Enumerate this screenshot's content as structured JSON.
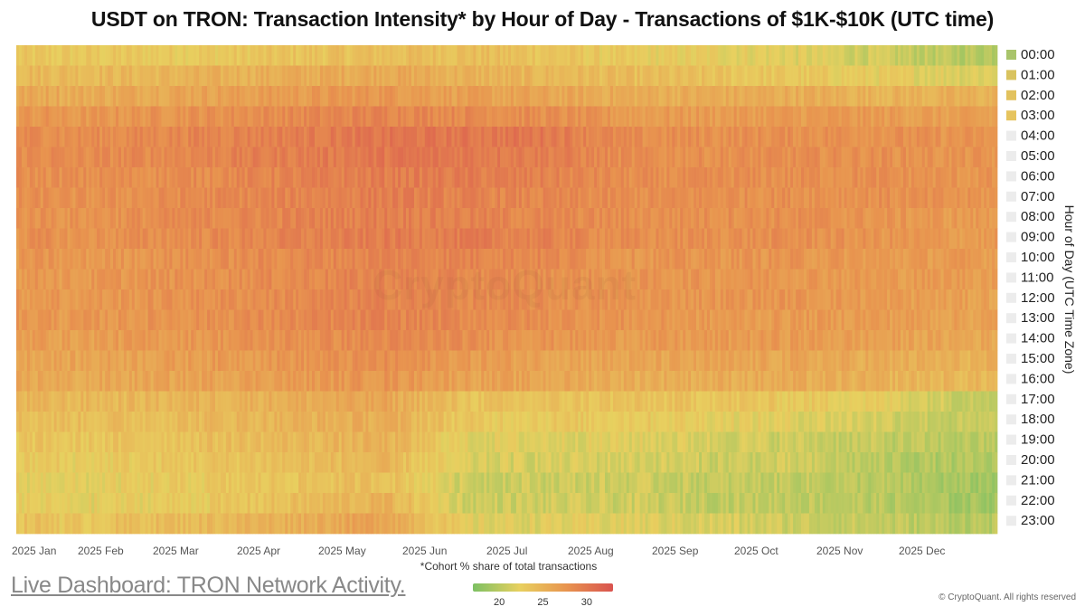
{
  "chart_data": {
    "type": "heatmap",
    "title": "USDT on TRON: Transaction Intensity* by Hour of Day - Transactions of $1K-$10K (UTC time)",
    "x_axis_ticks": [
      "2025 Jan",
      "2025 Feb",
      "2025 Mar",
      "2025 Apr",
      "2025 May",
      "2025 Jun",
      "2025 Jul",
      "2025 Aug",
      "2025 Sep",
      "2025 Oct",
      "2025 Nov",
      "2025 Dec"
    ],
    "y_axis_label": "Hour of Day (UTC Time Zone)",
    "hours": [
      "00:00",
      "01:00",
      "02:00",
      "03:00",
      "04:00",
      "05:00",
      "06:00",
      "07:00",
      "08:00",
      "09:00",
      "10:00",
      "11:00",
      "12:00",
      "13:00",
      "14:00",
      "15:00",
      "16:00",
      "17:00",
      "18:00",
      "19:00",
      "20:00",
      "21:00",
      "22:00",
      "23:00"
    ],
    "hour_legend_colors": [
      "#a9c46b",
      "#d9c35f",
      "#e2c25e",
      "#e6c45e",
      "#ececec",
      "#ececec",
      "#ececec",
      "#ececec",
      "#ececec",
      "#ececec",
      "#ececec",
      "#ececec",
      "#ececec",
      "#ececec",
      "#ececec",
      "#ececec",
      "#ececec",
      "#ececec",
      "#ececec",
      "#ececec",
      "#ececec",
      "#ececec",
      "#ececec",
      "#ececec"
    ],
    "monthly_values": [
      [
        23,
        23,
        23,
        23.5,
        24,
        24,
        23.5,
        22.5,
        22.5,
        22,
        21,
        20
      ],
      [
        24.5,
        24.5,
        25,
        25.5,
        26,
        25,
        24.5,
        24,
        23.5,
        23,
        22.5,
        22
      ],
      [
        25.5,
        26,
        26.5,
        27,
        27.5,
        26.5,
        26,
        25.5,
        25.5,
        25.5,
        25,
        25
      ],
      [
        27,
        27.5,
        28,
        28.5,
        29,
        28.5,
        28,
        27,
        27,
        27,
        27,
        26.5
      ],
      [
        28,
        28.5,
        29,
        29.5,
        30,
        30,
        30,
        28,
        28,
        28,
        28,
        27.5
      ],
      [
        28,
        28.5,
        29,
        29.5,
        30,
        30,
        29.5,
        28,
        28,
        28,
        28,
        27.5
      ],
      [
        28,
        28,
        28.5,
        29,
        29.5,
        29.5,
        29,
        28,
        28,
        28,
        28,
        27.5
      ],
      [
        27.5,
        28,
        28.5,
        29,
        29.5,
        29,
        28.5,
        28,
        28,
        28,
        28,
        27.5
      ],
      [
        27.5,
        28,
        28.5,
        29,
        29.5,
        29,
        28.5,
        28,
        28,
        28,
        27.5,
        27
      ],
      [
        27.5,
        28,
        28.5,
        29,
        29.5,
        29.5,
        29,
        28,
        28,
        28,
        27.5,
        27
      ],
      [
        27,
        27.5,
        28,
        28.5,
        29,
        29,
        28.5,
        27.5,
        27.5,
        27.5,
        27,
        27
      ],
      [
        27,
        27.5,
        28,
        28.5,
        29,
        28.5,
        28,
        27.5,
        27.5,
        27.5,
        27,
        27
      ],
      [
        27,
        27.5,
        28,
        28.5,
        29,
        28.5,
        28,
        27.5,
        27.5,
        27.5,
        27,
        26.5
      ],
      [
        27,
        27.5,
        28,
        28.5,
        29,
        28.5,
        28,
        27.5,
        27,
        27,
        27,
        26.5
      ],
      [
        26.5,
        27,
        27.5,
        28,
        28.5,
        28,
        27.5,
        27,
        27,
        27,
        26.5,
        26
      ],
      [
        26,
        26.5,
        27,
        27.5,
        28,
        27,
        26.5,
        26,
        26,
        26,
        25.5,
        25
      ],
      [
        25.5,
        26,
        26.5,
        27,
        27.5,
        26.5,
        26,
        25.5,
        25.5,
        25.5,
        25,
        24.5
      ],
      [
        24.5,
        24.5,
        25,
        25.5,
        26,
        23.5,
        23.5,
        23.5,
        23.5,
        23,
        22.5,
        21
      ],
      [
        24,
        24,
        24.5,
        25,
        25.5,
        23,
        23,
        23,
        22.5,
        22,
        21.5,
        20.5
      ],
      [
        23,
        23.5,
        24,
        24.5,
        25,
        22,
        22,
        22,
        21.5,
        21,
        20.5,
        20
      ],
      [
        22.5,
        23,
        23.5,
        24,
        24.5,
        21.5,
        21.5,
        21.5,
        21,
        21,
        20,
        19.5
      ],
      [
        22,
        22.5,
        23,
        23.5,
        24,
        21,
        21,
        21,
        20.5,
        20.5,
        20,
        19
      ],
      [
        22,
        22.5,
        23,
        24,
        25,
        21,
        21,
        21,
        20.5,
        20.5,
        20,
        19
      ],
      [
        23,
        24,
        24.5,
        25.5,
        26.5,
        22,
        22,
        22,
        21.5,
        21,
        20.5,
        20
      ]
    ],
    "color_scale": {
      "ticks": [
        20,
        25,
        30
      ],
      "min": 17,
      "max": 33,
      "colors": [
        "#7cc063",
        "#e8d05f",
        "#e8944f",
        "#d9534f"
      ]
    },
    "caption": "*Cohort % share of total transactions"
  },
  "footer": {
    "link_text": "Live Dashboard: TRON Network Activity.",
    "copyright": "© CryptoQuant. All rights reserved",
    "watermark": "CryptoQuant"
  }
}
